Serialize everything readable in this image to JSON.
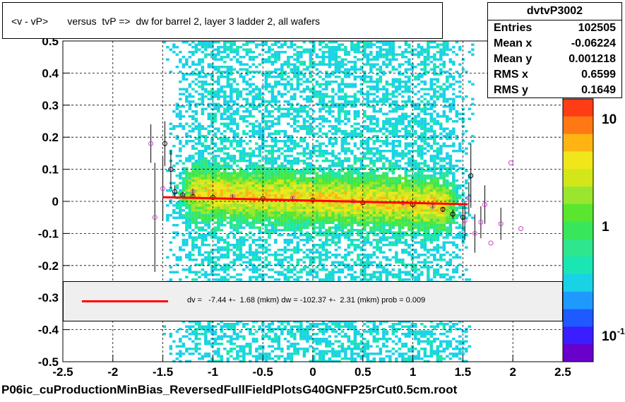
{
  "title": "<v - vP>       versus  tvP =>  dw for barrel 2, layer 3 ladder 2, all wafers",
  "stats": {
    "name": "dvtvP3002",
    "rows": [
      {
        "key": "Entries",
        "value": "102505"
      },
      {
        "key": "Mean x",
        "value": "-0.06224"
      },
      {
        "key": "Mean y",
        "value": "0.001218"
      },
      {
        "key": "RMS x",
        "value": "0.6599"
      },
      {
        "key": "RMS y",
        "value": "0.1649"
      }
    ]
  },
  "fit_legend": "dv =   -7.44 +-  1.68 (mkm) dw = -102.37 +-  2.31 (mkm) prob = 0.009",
  "footer": "P06ic_cuProductionMinBias_ReversedFullFieldPlotsG40GNFP25rCut0.5cm.root",
  "colors": {
    "fit_line": "#ff0000",
    "profile_black": "#000000",
    "profile_magenta": "#cc44cc",
    "palette": [
      "#6a00cc",
      "#3a1eff",
      "#1e5aff",
      "#1e9aff",
      "#1ad2e6",
      "#1ae6b4",
      "#2ee68c",
      "#38e65a",
      "#5ae62e",
      "#9ae62e",
      "#d2e61a",
      "#f0e61a",
      "#ffb414",
      "#ff7814",
      "#ff3c14"
    ]
  },
  "chart_data": {
    "type": "heatmap",
    "title": "<v - vP>       versus  tvP =>  dw for barrel 2, layer 3 ladder 2, all wafers",
    "xlim": [
      -2.5,
      2.5
    ],
    "ylim": [
      -0.5,
      0.5
    ],
    "x_ticks": [
      "-2.5",
      "-2",
      "-1.5",
      "-1",
      "-0.5",
      "0",
      "0.5",
      "1",
      "1.5",
      "2",
      "2.5"
    ],
    "y_ticks": [
      "-0.5",
      "-0.4",
      "-0.3",
      "-0.2",
      "-0.1",
      "0",
      "0.1",
      "0.2",
      "0.3",
      "0.4",
      "0.5"
    ],
    "z_scale": "log",
    "z_ticks": [
      "10",
      "1",
      "10^-1"
    ],
    "grid": true,
    "fit": {
      "x": [
        -1.5,
        1.55
      ],
      "y": [
        0.013,
        -0.009
      ]
    },
    "profile_black": [
      {
        "x": -1.48,
        "y": 0.18,
        "err": 0.07
      },
      {
        "x": -1.42,
        "y": 0.1,
        "err": 0.06
      },
      {
        "x": -1.38,
        "y": 0.03,
        "err": 0.02
      },
      {
        "x": -1.3,
        "y": 0.02,
        "err": 0.01
      },
      {
        "x": -1.2,
        "y": 0.015,
        "err": 0.005
      },
      {
        "x": -1.0,
        "y": 0.012,
        "err": 0.004
      },
      {
        "x": -0.5,
        "y": 0.008,
        "err": 0.003
      },
      {
        "x": 0.0,
        "y": 0.004,
        "err": 0.003
      },
      {
        "x": 0.5,
        "y": -0.004,
        "err": 0.003
      },
      {
        "x": 1.0,
        "y": -0.01,
        "err": 0.004
      },
      {
        "x": 1.3,
        "y": -0.025,
        "err": 0.008
      },
      {
        "x": 1.4,
        "y": -0.04,
        "err": 0.015
      },
      {
        "x": 1.5,
        "y": -0.05,
        "err": 0.03
      },
      {
        "x": 1.58,
        "y": 0.08,
        "err": 0.1
      }
    ],
    "profile_magenta": [
      {
        "x": -1.62,
        "y": 0.18,
        "err": 0.06
      },
      {
        "x": -1.58,
        "y": -0.05,
        "err": 0.17
      },
      {
        "x": -1.5,
        "y": 0.04,
        "err": 0.1
      },
      {
        "x": -1.2,
        "y": 0.03,
        "err": 0.01
      },
      {
        "x": -0.8,
        "y": 0.015,
        "err": 0.005
      },
      {
        "x": -0.2,
        "y": 0.01,
        "err": 0.004
      },
      {
        "x": 0.4,
        "y": 0.0,
        "err": 0.004
      },
      {
        "x": 0.9,
        "y": -0.005,
        "err": 0.005
      },
      {
        "x": 1.2,
        "y": -0.015,
        "err": 0.008
      },
      {
        "x": 1.52,
        "y": -0.06,
        "err": 0.06
      },
      {
        "x": 1.56,
        "y": 0.01,
        "err": 0.05
      },
      {
        "x": 1.62,
        "y": -0.1,
        "err": 0.06
      },
      {
        "x": 1.68,
        "y": -0.065,
        "err": 0.05
      },
      {
        "x": 1.72,
        "y": -0.01,
        "err": 0.06
      },
      {
        "x": 1.78,
        "y": -0.13,
        "err": 0.0
      },
      {
        "x": 1.88,
        "y": -0.07,
        "err": 0.05
      },
      {
        "x": 1.98,
        "y": 0.12,
        "err": 0.0
      },
      {
        "x": 2.08,
        "y": -0.085,
        "err": 0.0
      }
    ]
  }
}
